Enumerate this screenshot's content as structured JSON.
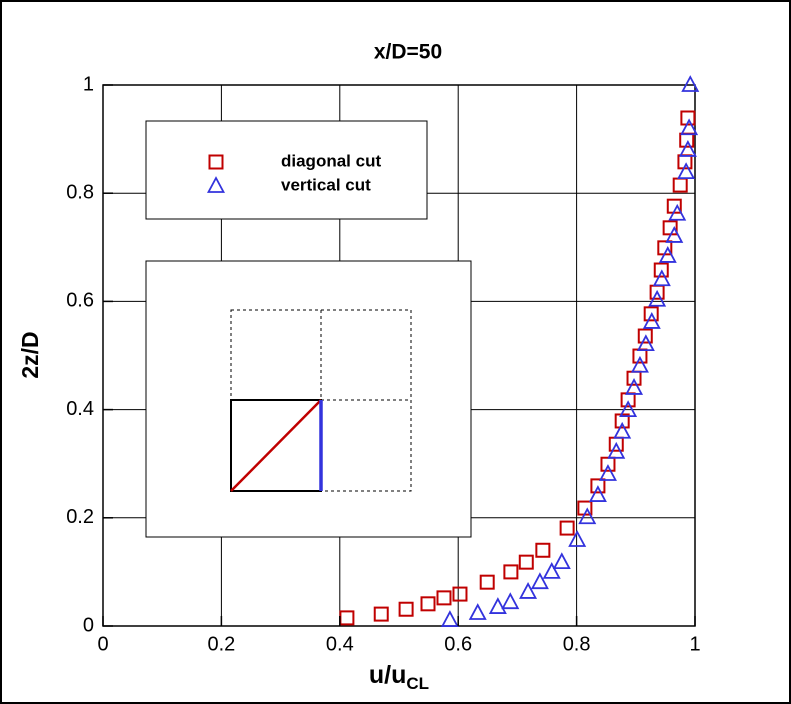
{
  "chart_data": {
    "type": "scatter",
    "title": "x/D=50",
    "xlabel": "u/u",
    "xlabel_sub": "CL",
    "ylabel": "2z/D",
    "xlim": [
      0,
      1
    ],
    "ylim": [
      0,
      1
    ],
    "xticks": [
      0,
      0.2,
      0.4,
      0.6,
      0.8,
      1
    ],
    "yticks": [
      0,
      0.2,
      0.4,
      0.6,
      0.8,
      1
    ],
    "grid": true,
    "series": [
      {
        "name": "diagonal cut",
        "color": "#c00000",
        "marker": "square",
        "x": [
          0.412,
          0.47,
          0.512,
          0.549,
          0.576,
          0.603,
          0.649,
          0.689,
          0.715,
          0.743,
          0.784,
          0.814,
          0.836,
          0.853,
          0.867,
          0.877,
          0.887,
          0.897,
          0.907,
          0.916,
          0.926,
          0.936,
          0.943,
          0.949,
          0.958,
          0.965,
          0.975,
          0.983,
          0.986,
          0.988
        ],
        "values": [
          0.015,
          0.022,
          0.031,
          0.041,
          0.052,
          0.059,
          0.081,
          0.1,
          0.118,
          0.14,
          0.181,
          0.218,
          0.259,
          0.299,
          0.336,
          0.379,
          0.418,
          0.458,
          0.499,
          0.536,
          0.577,
          0.617,
          0.658,
          0.699,
          0.736,
          0.776,
          0.815,
          0.858,
          0.898,
          0.939
        ]
      },
      {
        "name": "vertical cut",
        "color": "#3333dd",
        "marker": "triangle",
        "x": [
          0.586,
          0.633,
          0.667,
          0.688,
          0.718,
          0.738,
          0.758,
          0.775,
          0.801,
          0.818,
          0.836,
          0.853,
          0.867,
          0.877,
          0.887,
          0.897,
          0.907,
          0.917,
          0.927,
          0.936,
          0.944,
          0.954,
          0.965,
          0.97,
          0.985,
          0.988,
          0.99,
          0.992
        ],
        "values": [
          0.011,
          0.024,
          0.035,
          0.044,
          0.063,
          0.081,
          0.1,
          0.118,
          0.159,
          0.201,
          0.242,
          0.281,
          0.322,
          0.359,
          0.399,
          0.44,
          0.481,
          0.521,
          0.562,
          0.603,
          0.641,
          0.684,
          0.721,
          0.762,
          0.839,
          0.88,
          0.92,
          1.0
        ]
      }
    ]
  }
}
